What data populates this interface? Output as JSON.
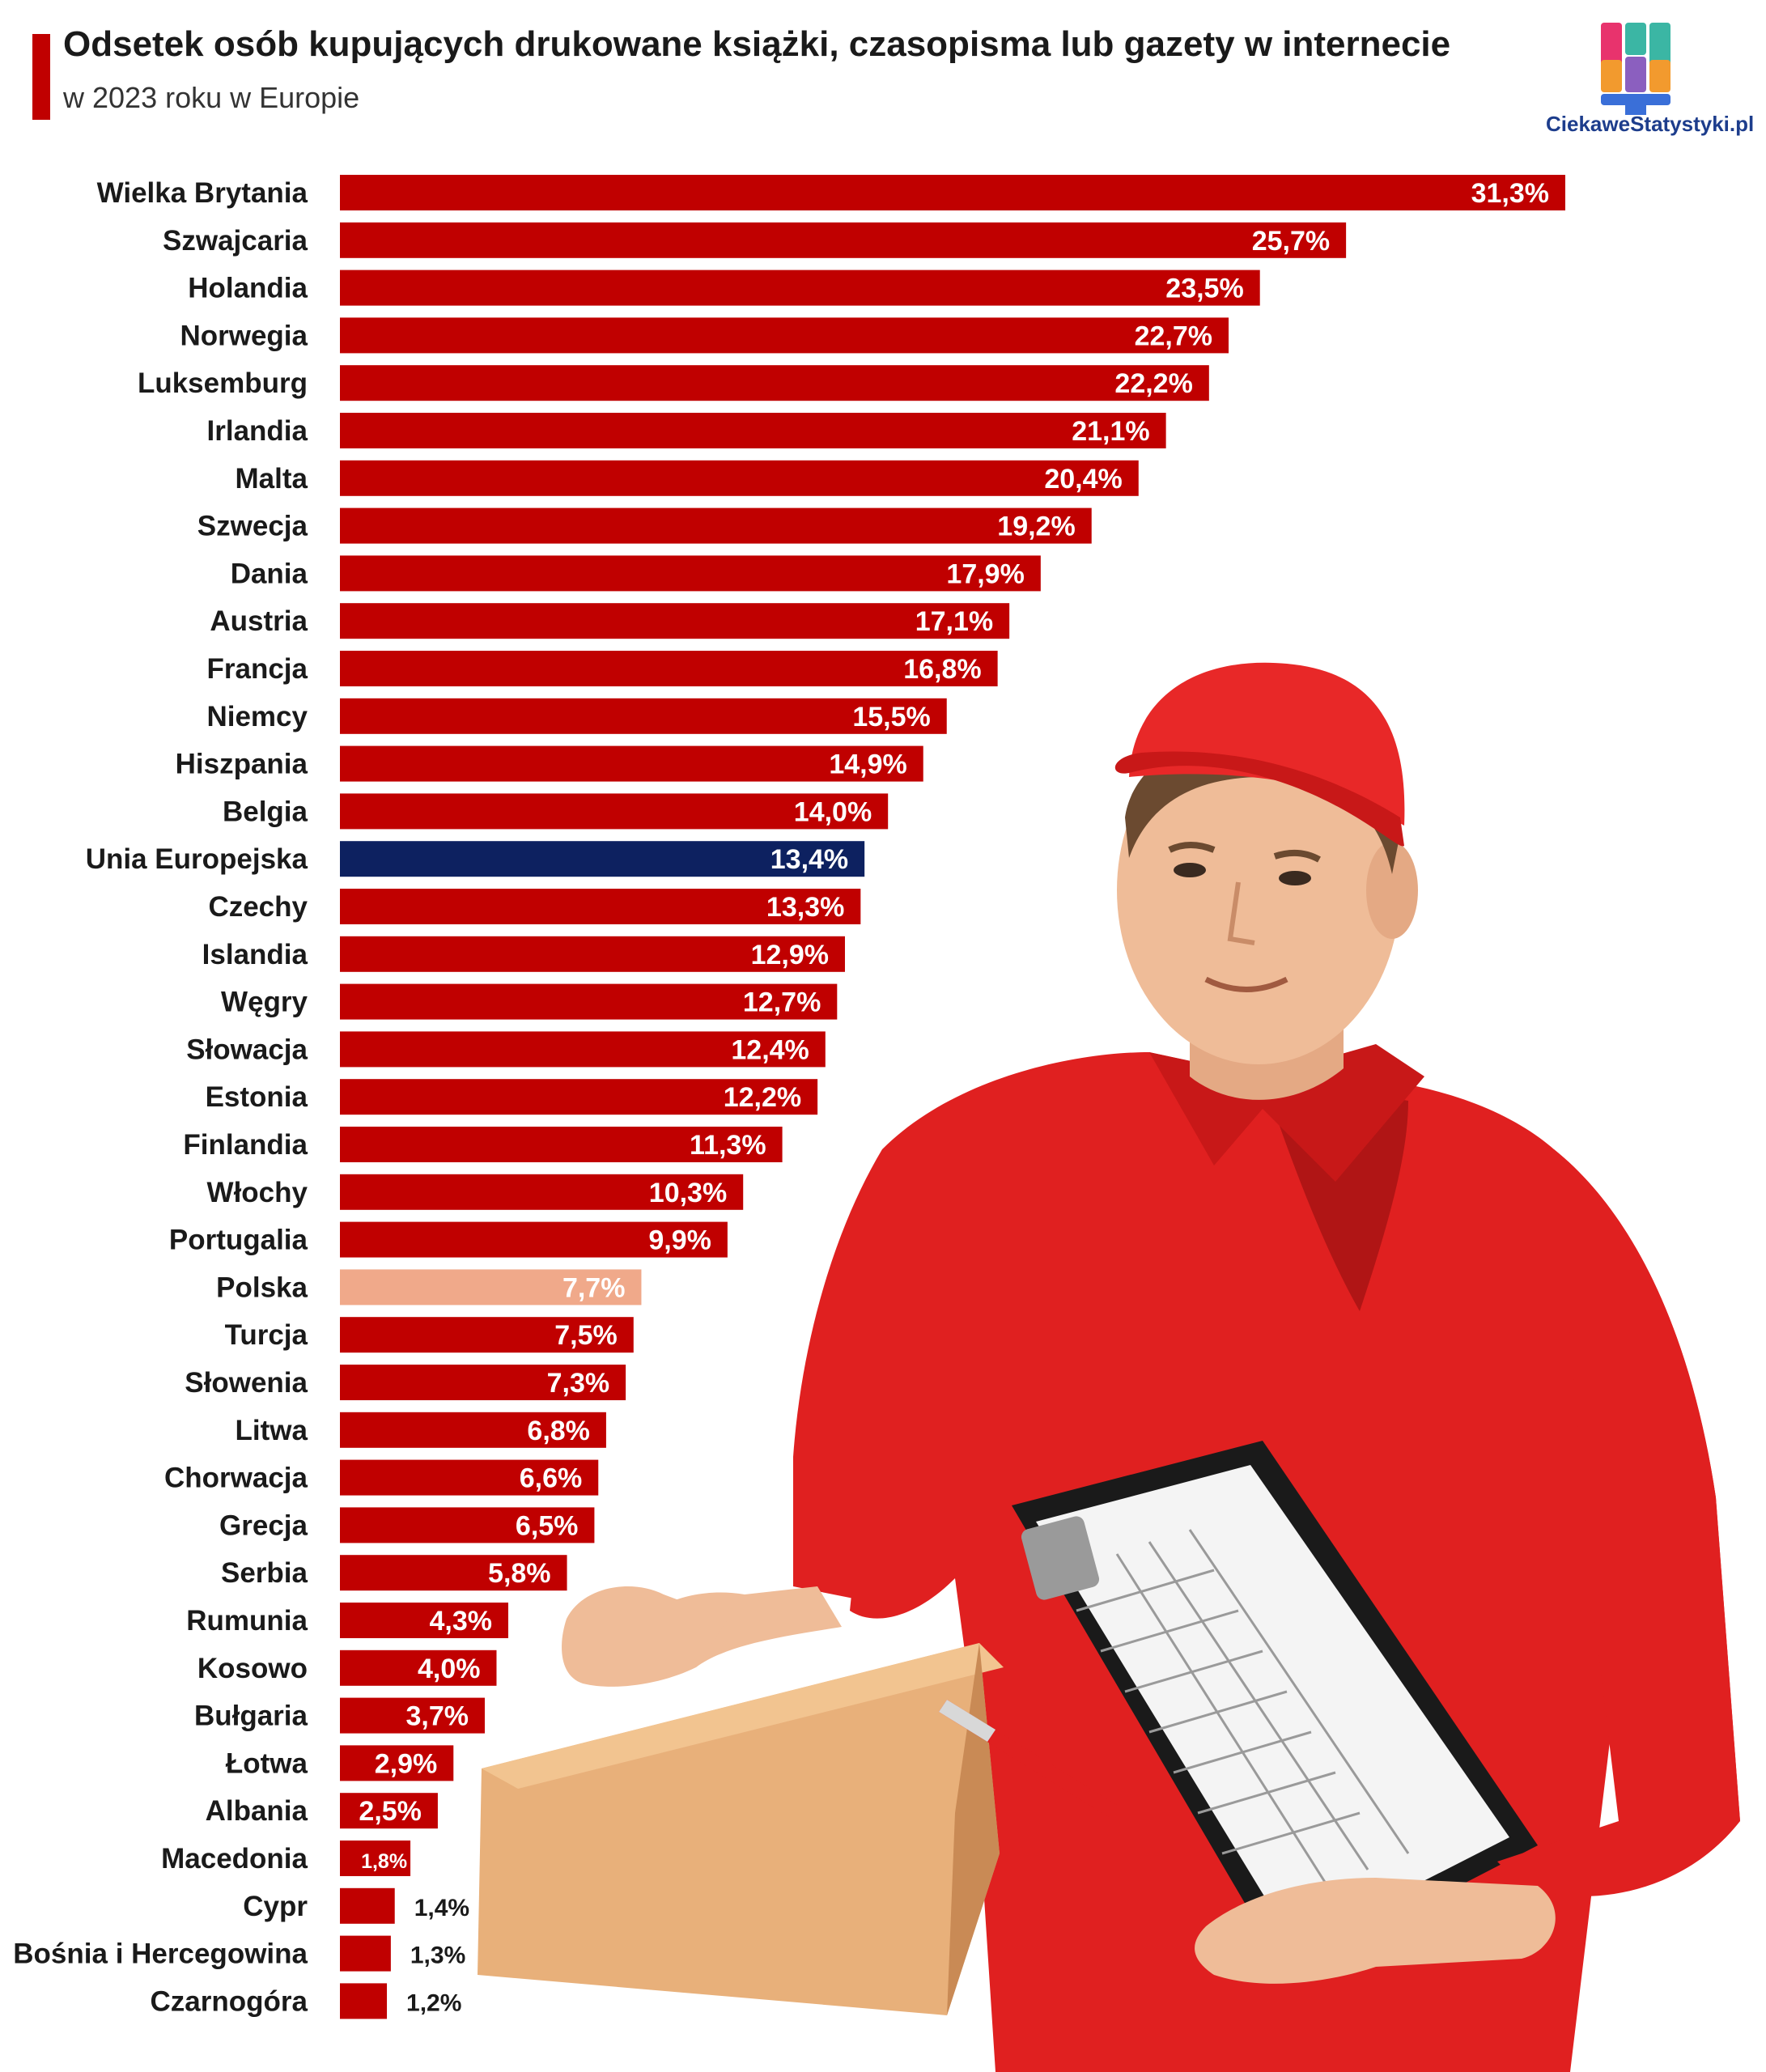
{
  "header": {
    "title": "Odsetek osób kupujących drukowane książki, czasopisma lub gazety w internecie",
    "subtitle": "w 2023 roku w Europie"
  },
  "logo": {
    "text": "CiekaweStatystyki.pl",
    "colors": [
      "#e8336d",
      "#f29a2e",
      "#3bb6a4",
      "#8b5fbf",
      "#3a6fd8"
    ]
  },
  "illustration": {
    "description_icon": "courier-with-box-and-clipboard",
    "shirt_color": "#e02020",
    "box_color": "#e8b07a"
  },
  "chart_data": {
    "type": "bar",
    "orientation": "horizontal",
    "title": "Odsetek osób kupujących drukowane książki, czasopisma lub gazety w internecie",
    "subtitle": "w 2023 roku w Europie",
    "unit": "%",
    "categories": [
      "Wielka Brytania",
      "Szwajcaria",
      "Holandia",
      "Norwegia",
      "Luksemburg",
      "Irlandia",
      "Malta",
      "Szwecja",
      "Dania",
      "Austria",
      "Francja",
      "Niemcy",
      "Hiszpania",
      "Belgia",
      "Unia Europejska",
      "Czechy",
      "Islandia",
      "Węgry",
      "Słowacja",
      "Estonia",
      "Finlandia",
      "Włochy",
      "Portugalia",
      "Polska",
      "Turcja",
      "Słowenia",
      "Litwa",
      "Chorwacja",
      "Grecja",
      "Serbia",
      "Rumunia",
      "Kosowo",
      "Bułgaria",
      "Łotwa",
      "Albania",
      "Macedonia",
      "Cypr",
      "Bośnia i Hercegowina",
      "Czarnogóra"
    ],
    "values": [
      31.3,
      25.7,
      23.5,
      22.7,
      22.2,
      21.1,
      20.4,
      19.2,
      17.9,
      17.1,
      16.8,
      15.5,
      14.9,
      14.0,
      13.4,
      13.3,
      12.9,
      12.7,
      12.4,
      12.2,
      11.3,
      10.3,
      9.9,
      7.7,
      7.5,
      7.3,
      6.8,
      6.6,
      6.5,
      5.8,
      4.3,
      4.0,
      3.7,
      2.9,
      2.5,
      1.8,
      1.4,
      1.3,
      1.2
    ],
    "value_labels": [
      "31,3%",
      "25,7%",
      "23,5%",
      "22,7%",
      "22,2%",
      "21,1%",
      "20,4%",
      "19,2%",
      "17,9%",
      "17,1%",
      "16,8%",
      "15,5%",
      "14,9%",
      "14,0%",
      "13,4%",
      "13,3%",
      "12,9%",
      "12,7%",
      "12,4%",
      "12,2%",
      "11,3%",
      "10,3%",
      "9,9%",
      "7,7%",
      "7,5%",
      "7,3%",
      "6,8%",
      "6,6%",
      "6,5%",
      "5,8%",
      "4,3%",
      "4,0%",
      "3,7%",
      "2,9%",
      "2,5%",
      "1,8%",
      "1,4%",
      "1,3%",
      "1,2%"
    ],
    "colors": {
      "default": "#c00000",
      "highlight_eu": "#0d2160",
      "highlight_poland": "#f0a98a"
    },
    "highlights": {
      "Unia Europejska": "highlight_eu",
      "Polska": "highlight_poland"
    },
    "xlim": [
      0,
      31.3
    ],
    "grid": false,
    "legend": "none"
  }
}
